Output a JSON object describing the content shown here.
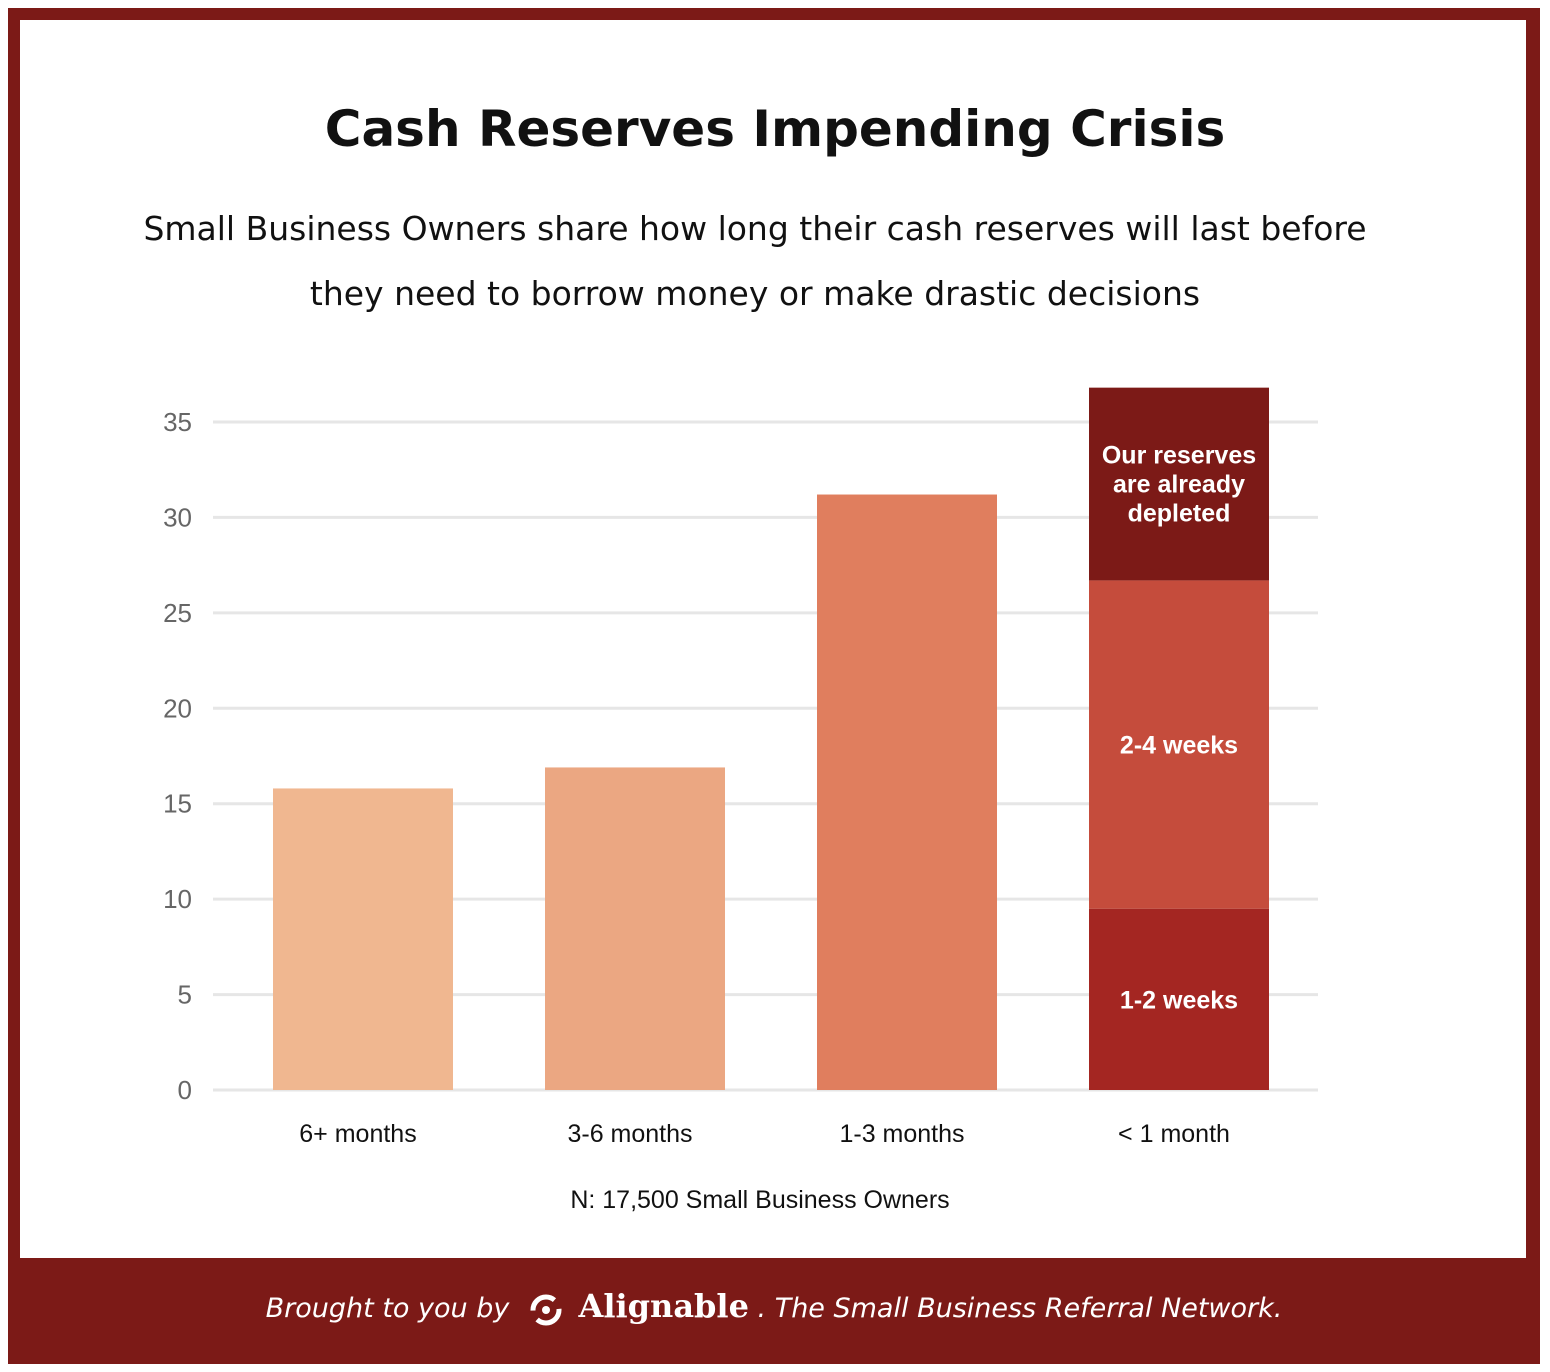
{
  "title": "Cash Reserves Impending Crisis",
  "subtitle": "Small Business Owners share how long their cash reserves will last before they need to borrow money or make drastic decisions",
  "note": "N: 17,500 Small Business Owners",
  "footer": {
    "prefix": "Brought to you by",
    "brand": "Alignable",
    "suffix": ". The Small Business Referral Network."
  },
  "colors": {
    "frame": "#7c1a17",
    "grid": "#e6e6e6"
  },
  "chart_data": {
    "type": "bar",
    "stacked": true,
    "categories": [
      "6+ months",
      "3-6 months",
      "1-3 months",
      "< 1 month"
    ],
    "series": [
      {
        "values": [
          15.8,
          16.9,
          31.2,
          9.5
        ],
        "colors": [
          "#f0b790",
          "#eba782",
          "#e07e5e",
          "#a42622"
        ],
        "labels": [
          null,
          null,
          null,
          "1-2 weeks"
        ]
      },
      {
        "values": [
          0,
          0,
          0,
          17.2
        ],
        "colors": [
          null,
          null,
          null,
          "#c54c3c"
        ],
        "labels": [
          null,
          null,
          null,
          "2-4 weeks"
        ]
      },
      {
        "values": [
          0,
          0,
          0,
          10.1
        ],
        "colors": [
          null,
          null,
          null,
          "#7c1a17"
        ],
        "labels": [
          null,
          null,
          null,
          "Our reserves are already depleted"
        ]
      }
    ],
    "yticks": [
      0,
      5,
      10,
      15,
      20,
      25,
      30,
      35
    ],
    "ylim": [
      0,
      35
    ],
    "grid": true,
    "legend": "none"
  }
}
